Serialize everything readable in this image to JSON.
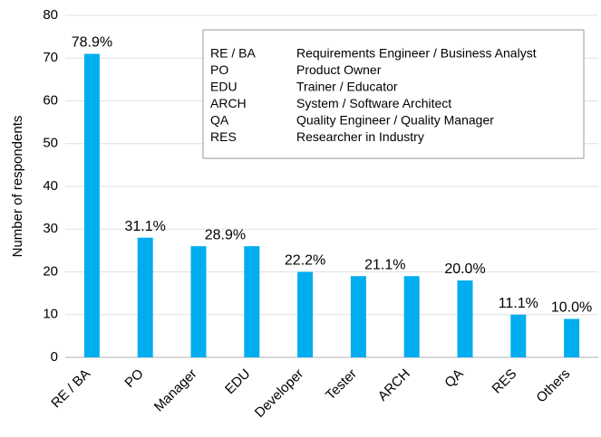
{
  "chart_data": {
    "type": "bar",
    "ylabel": "Number of respondents",
    "categories": [
      "RE / BA",
      "PO",
      "Manager",
      "EDU",
      "Developer",
      "Tester",
      "ARCH",
      "QA",
      "RES",
      "Others"
    ],
    "values": [
      71,
      28,
      26,
      26,
      20,
      19,
      19,
      18,
      10,
      9
    ],
    "value_labels": [
      "78.9%",
      "31.1%",
      "28.9%",
      null,
      "22.2%",
      "21.1%",
      null,
      "20.0%",
      "11.1%",
      "10.0%"
    ],
    "color": "#00adef",
    "ylim": [
      0,
      80
    ],
    "yticks": [
      0,
      10,
      20,
      30,
      40,
      50,
      60,
      70,
      80
    ],
    "grid": true,
    "legend_table": [
      [
        "RE / BA",
        "Requirements Engineer / Business Analyst"
      ],
      [
        "PO",
        "Product Owner"
      ],
      [
        "EDU",
        "Trainer / Educator"
      ],
      [
        "ARCH",
        "System / Software Architect"
      ],
      [
        "QA",
        "Quality Engineer / Quality Manager"
      ],
      [
        "RES",
        "Researcher in Industry"
      ]
    ]
  }
}
